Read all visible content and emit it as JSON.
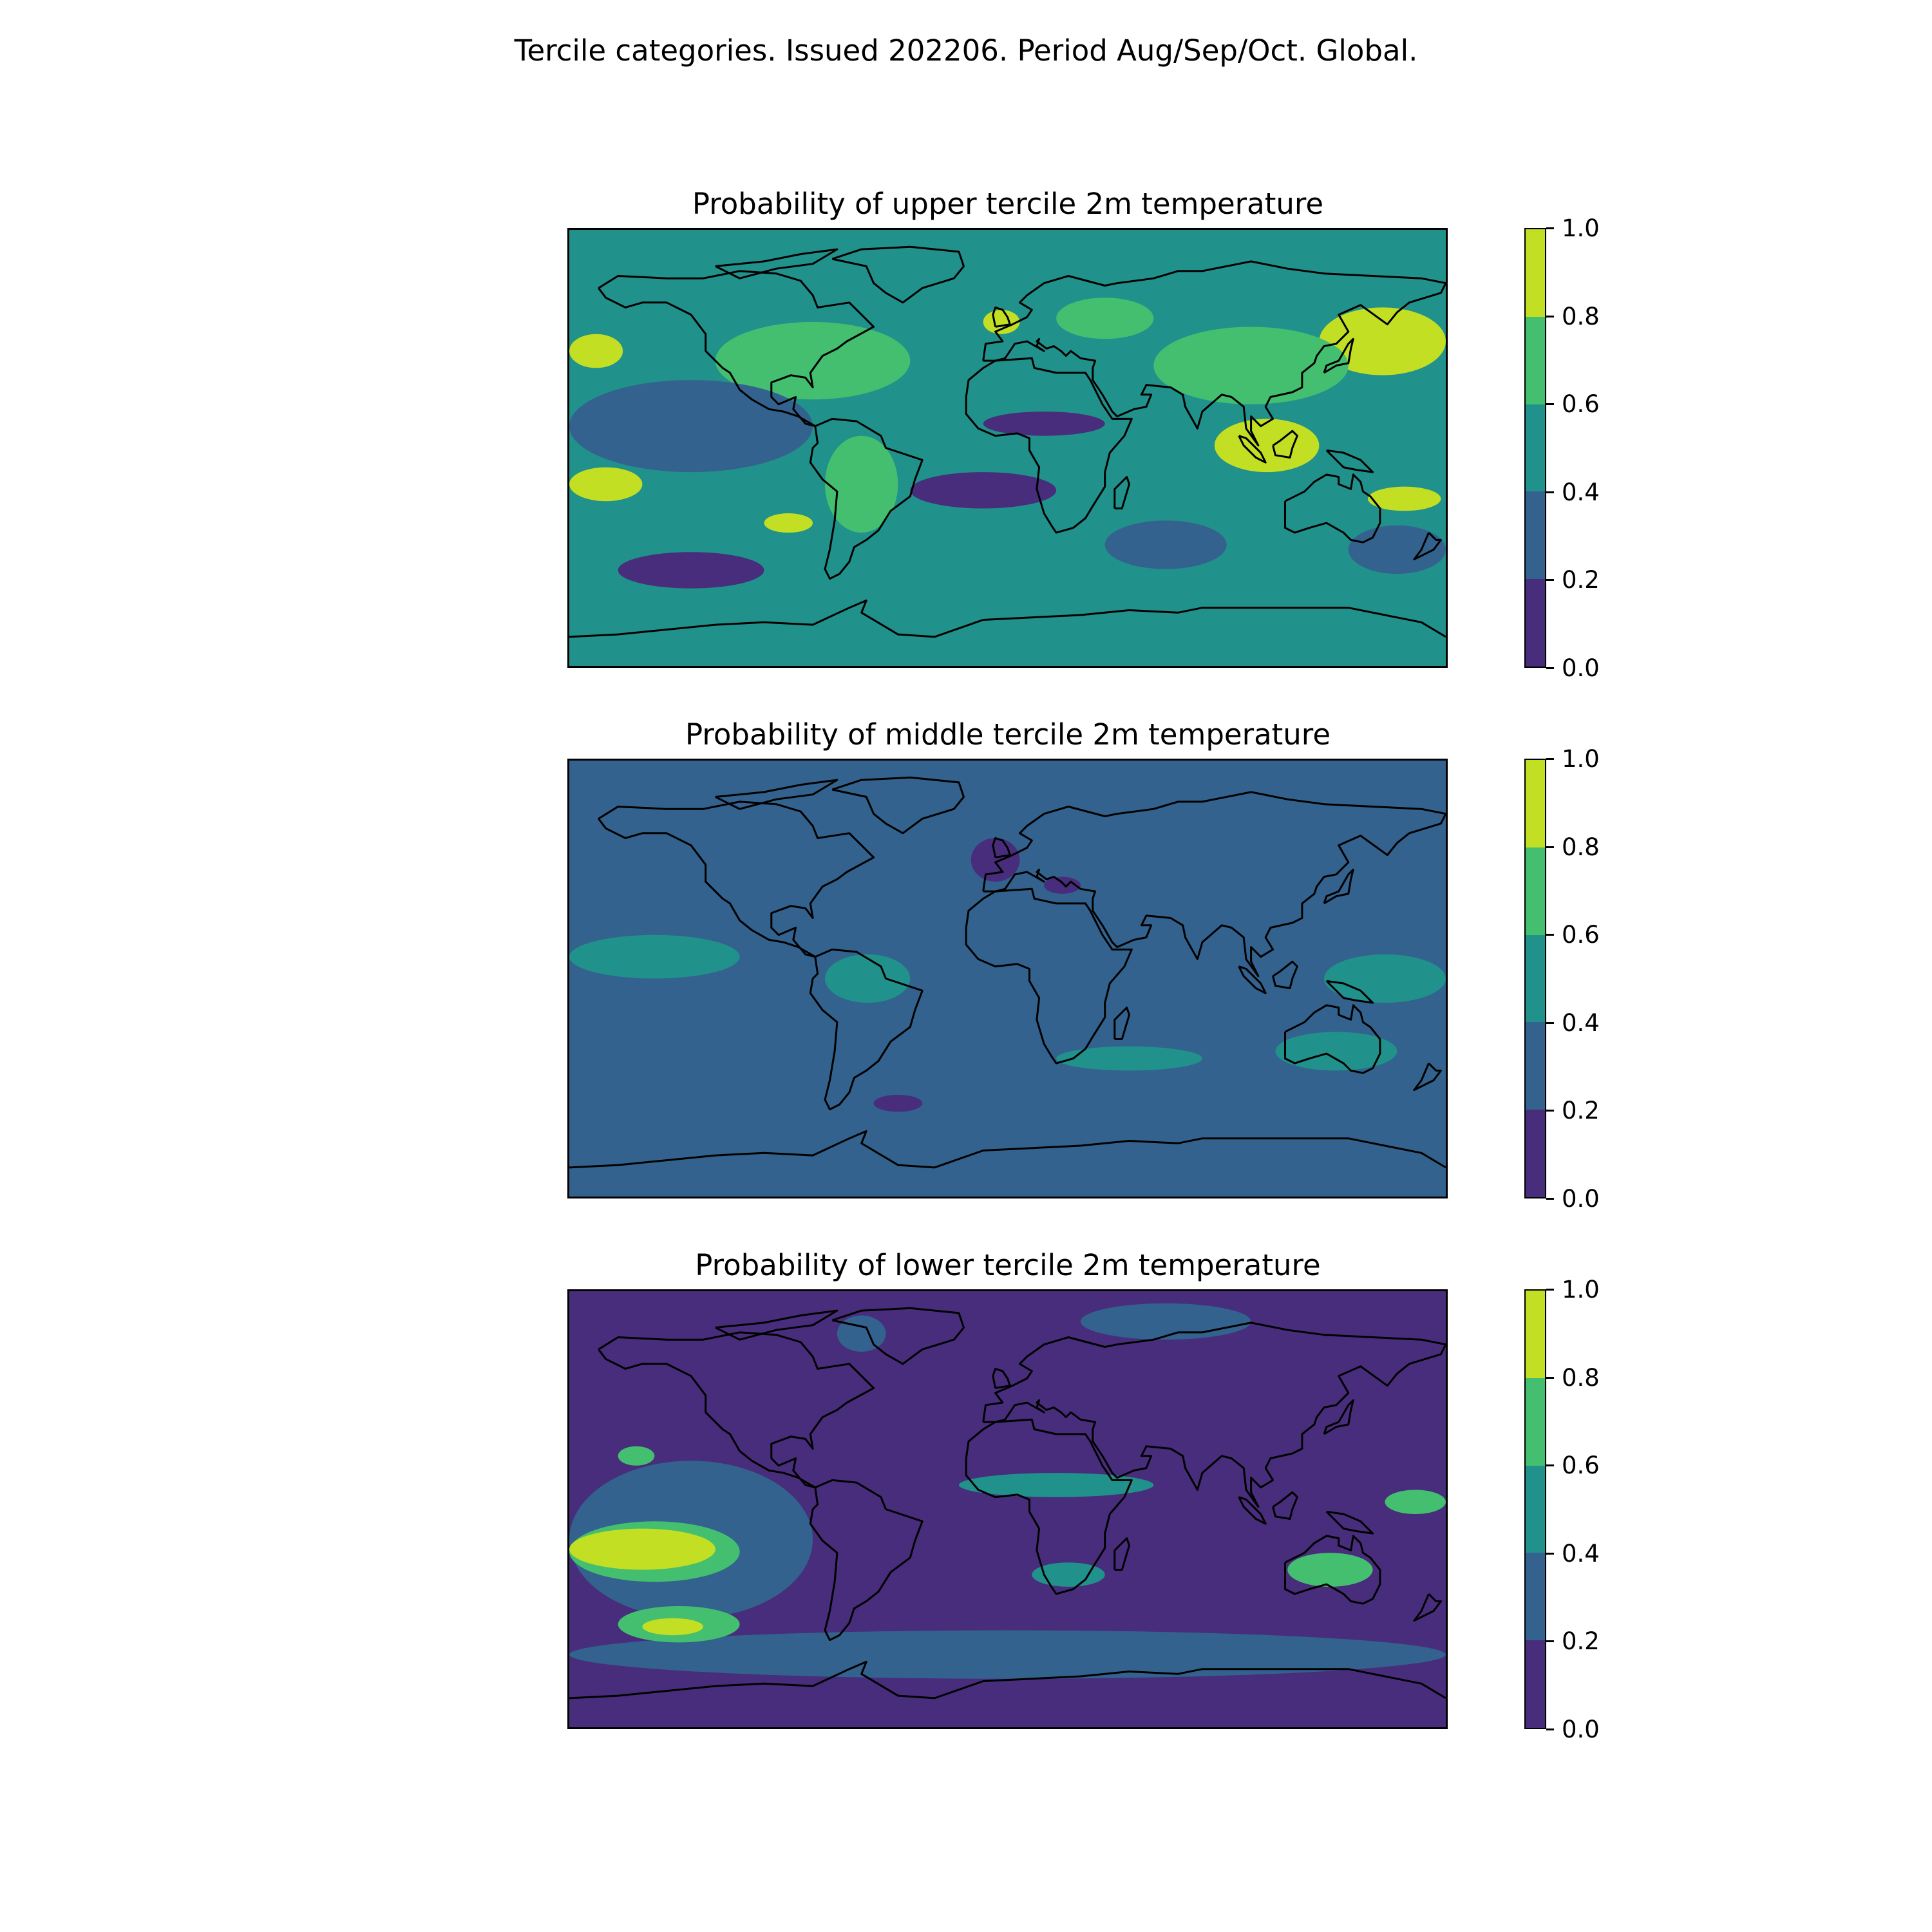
{
  "suptitle": "Tercile categories. Issued 202206. Period Aug/Sep/Oct. Global.",
  "colorbar": {
    "ticks": [
      "0.0",
      "0.2",
      "0.4",
      "0.6",
      "0.8",
      "1.0"
    ],
    "bins": [
      {
        "range": [
          0.0,
          0.2
        ],
        "color": "#472d7b"
      },
      {
        "range": [
          0.2,
          0.4
        ],
        "color": "#32628d"
      },
      {
        "range": [
          0.4,
          0.6
        ],
        "color": "#21918c"
      },
      {
        "range": [
          0.6,
          0.8
        ],
        "color": "#44bf70"
      },
      {
        "range": [
          0.8,
          1.0
        ],
        "color": "#c2df23"
      }
    ]
  },
  "panels": [
    {
      "id": "upper",
      "title": "Probability of upper tercile 2m temperature",
      "background_bin": 2,
      "regions": [
        {
          "bin": 4,
          "lon": [
            -180,
            -158
          ],
          "lat": [
            33,
            47
          ]
        },
        {
          "bin": 4,
          "lon": [
            -180,
            -150
          ],
          "lat": [
            -22,
            -8
          ]
        },
        {
          "bin": 4,
          "lon": [
            -100,
            -80
          ],
          "lat": [
            -35,
            -27
          ]
        },
        {
          "bin": 4,
          "lon": [
            85,
            128
          ],
          "lat": [
            -10,
            12
          ]
        },
        {
          "bin": 4,
          "lon": [
            128,
            180
          ],
          "lat": [
            30,
            58
          ]
        },
        {
          "bin": 4,
          "lon": [
            148,
            178
          ],
          "lat": [
            -26,
            -16
          ]
        },
        {
          "bin": 4,
          "lon": [
            -10,
            5
          ],
          "lat": [
            47,
            57
          ]
        },
        {
          "bin": 3,
          "lon": [
            -120,
            -40
          ],
          "lat": [
            20,
            52
          ]
        },
        {
          "bin": 3,
          "lon": [
            60,
            140
          ],
          "lat": [
            18,
            50
          ]
        },
        {
          "bin": 3,
          "lon": [
            20,
            60
          ],
          "lat": [
            45,
            62
          ]
        },
        {
          "bin": 3,
          "lon": [
            -75,
            -45
          ],
          "lat": [
            -35,
            5
          ]
        },
        {
          "bin": 0,
          "lon": [
            -160,
            -100
          ],
          "lat": [
            -58,
            -43
          ]
        },
        {
          "bin": 0,
          "lon": [
            -40,
            20
          ],
          "lat": [
            -25,
            -10
          ]
        },
        {
          "bin": 0,
          "lon": [
            -10,
            40
          ],
          "lat": [
            5,
            15
          ]
        },
        {
          "bin": 1,
          "lon": [
            -180,
            -80
          ],
          "lat": [
            -10,
            28
          ]
        },
        {
          "bin": 1,
          "lon": [
            140,
            180
          ],
          "lat": [
            -52,
            -32
          ]
        },
        {
          "bin": 1,
          "lon": [
            40,
            90
          ],
          "lat": [
            -50,
            -30
          ]
        }
      ]
    },
    {
      "id": "middle",
      "title": "Probability of middle tercile 2m temperature",
      "background_bin": 1,
      "regions": [
        {
          "bin": 3,
          "lon": [
            -180,
            -140
          ],
          "lat": [
            5,
            12
          ]
        },
        {
          "bin": 2,
          "lon": [
            -180,
            -110
          ],
          "lat": [
            0,
            18
          ]
        },
        {
          "bin": 2,
          "lon": [
            -75,
            -40
          ],
          "lat": [
            -10,
            10
          ]
        },
        {
          "bin": 2,
          "lon": [
            130,
            180
          ],
          "lat": [
            -10,
            10
          ]
        },
        {
          "bin": 2,
          "lon": [
            20,
            80
          ],
          "lat": [
            -38,
            -28
          ]
        },
        {
          "bin": 2,
          "lon": [
            110,
            160
          ],
          "lat": [
            -38,
            -22
          ]
        },
        {
          "bin": 0,
          "lon": [
            -15,
            5
          ],
          "lat": [
            40,
            58
          ]
        },
        {
          "bin": 0,
          "lon": [
            15,
            30
          ],
          "lat": [
            35,
            42
          ]
        },
        {
          "bin": 0,
          "lon": [
            -55,
            -35
          ],
          "lat": [
            -55,
            -48
          ]
        }
      ]
    },
    {
      "id": "lower",
      "title": "Probability of lower tercile 2m temperature",
      "background_bin": 0,
      "regions": [
        {
          "bin": 1,
          "lon": [
            -180,
            -80
          ],
          "lat": [
            -45,
            20
          ]
        },
        {
          "bin": 1,
          "lon": [
            -180,
            180
          ],
          "lat": [
            -70,
            -50
          ]
        },
        {
          "bin": 1,
          "lon": [
            -70,
            -50
          ],
          "lat": [
            65,
            80
          ]
        },
        {
          "bin": 1,
          "lon": [
            30,
            100
          ],
          "lat": [
            70,
            85
          ]
        },
        {
          "bin": 3,
          "lon": [
            -180,
            -110
          ],
          "lat": [
            -30,
            -5
          ]
        },
        {
          "bin": 4,
          "lon": [
            -180,
            -120
          ],
          "lat": [
            -25,
            -8
          ]
        },
        {
          "bin": 3,
          "lon": [
            -160,
            -110
          ],
          "lat": [
            -55,
            -40
          ]
        },
        {
          "bin": 4,
          "lon": [
            -150,
            -125
          ],
          "lat": [
            -52,
            -45
          ]
        },
        {
          "bin": 3,
          "lon": [
            -160,
            -145
          ],
          "lat": [
            18,
            26
          ]
        },
        {
          "bin": 2,
          "lon": [
            -20,
            60
          ],
          "lat": [
            5,
            15
          ]
        },
        {
          "bin": 3,
          "lon": [
            115,
            150
          ],
          "lat": [
            -32,
            -18
          ]
        },
        {
          "bin": 3,
          "lon": [
            155,
            180
          ],
          "lat": [
            -2,
            8
          ]
        },
        {
          "bin": 2,
          "lon": [
            10,
            40
          ],
          "lat": [
            -32,
            -22
          ]
        }
      ]
    }
  ]
}
